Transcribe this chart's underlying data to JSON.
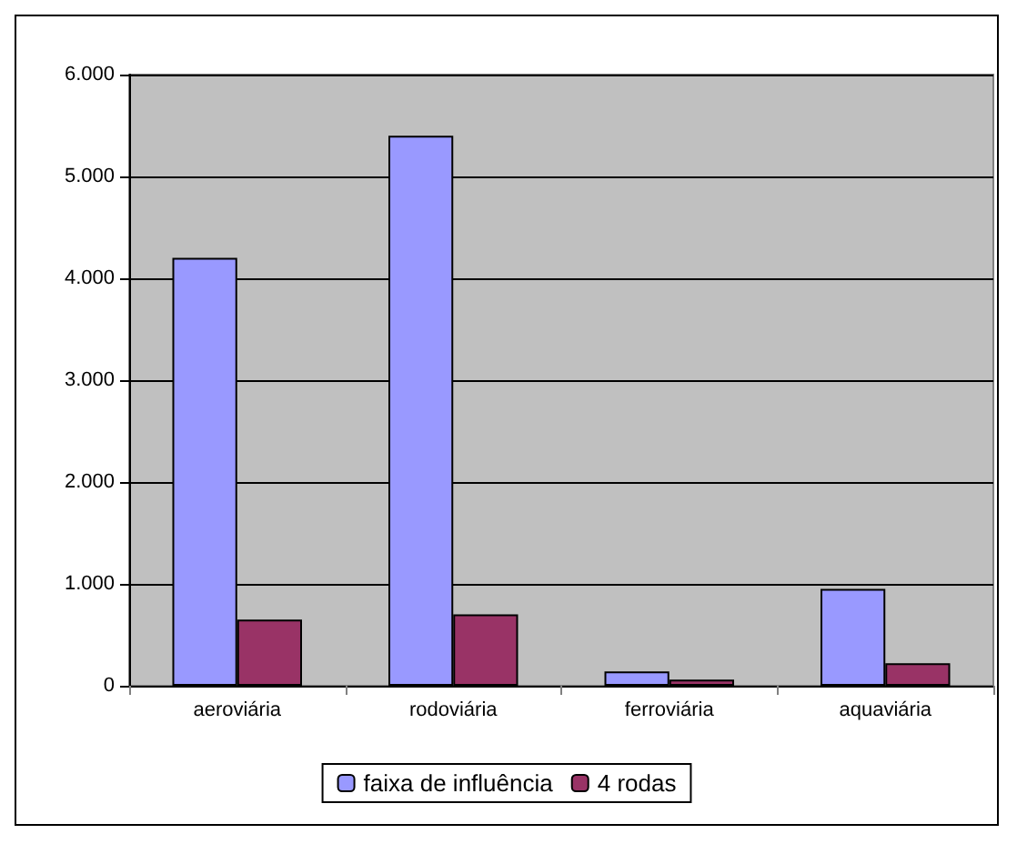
{
  "chart_data": {
    "type": "bar",
    "categories": [
      "aeroviária",
      "rodoviária",
      "ferroviária",
      "aquaviária"
    ],
    "series": [
      {
        "name": "faixa de influência",
        "color": "#9999ff",
        "values": [
          4200,
          5400,
          140,
          950
        ]
      },
      {
        "name": "4 rodas",
        "color": "#993366",
        "values": [
          650,
          700,
          60,
          220
        ]
      }
    ],
    "ylim": [
      0,
      6000
    ],
    "yticks": [
      {
        "value": 0,
        "label": "0"
      },
      {
        "value": 1000,
        "label": "1.000"
      },
      {
        "value": 2000,
        "label": "2.000"
      },
      {
        "value": 3000,
        "label": "3.000"
      },
      {
        "value": 4000,
        "label": "4.000"
      },
      {
        "value": 5000,
        "label": "5.000"
      },
      {
        "value": 6000,
        "label": "6.000"
      }
    ],
    "grid": "y",
    "legend": "bottom"
  }
}
